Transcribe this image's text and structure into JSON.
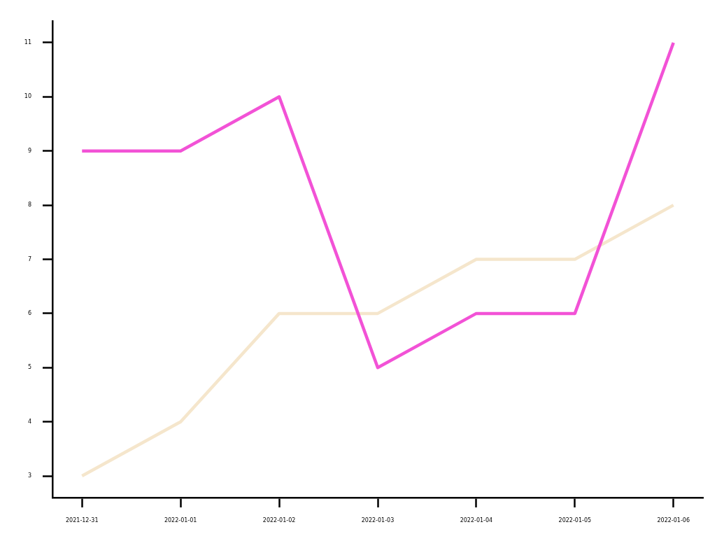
{
  "chart_data": {
    "type": "line",
    "x": [
      "2021-12-31",
      "2022-01-01",
      "2022-01-02",
      "2022-01-03",
      "2022-01-04",
      "2022-01-05",
      "2022-01-06"
    ],
    "series": [
      {
        "color": "#f252d6",
        "values": [
          9,
          9,
          10,
          5,
          6,
          6,
          11
        ]
      },
      {
        "color": "#f5e6cc",
        "values": [
          3,
          4,
          6,
          6,
          7,
          7,
          8
        ]
      }
    ],
    "xlim": [
      "2021-12-30T16:48",
      "2022-01-06T07:12"
    ],
    "xticks": [
      "2021-12-31",
      "2022-01-01",
      "2022-01-02",
      "2022-01-03",
      "2022-01-04",
      "2022-01-05",
      "2022-01-06"
    ],
    "ylim": [
      2.6,
      11.4
    ],
    "yticks": [
      3,
      4,
      5,
      6,
      7,
      8,
      9,
      10,
      11
    ],
    "grid": false,
    "legend": false,
    "line_style": "solid",
    "marker": "none"
  }
}
